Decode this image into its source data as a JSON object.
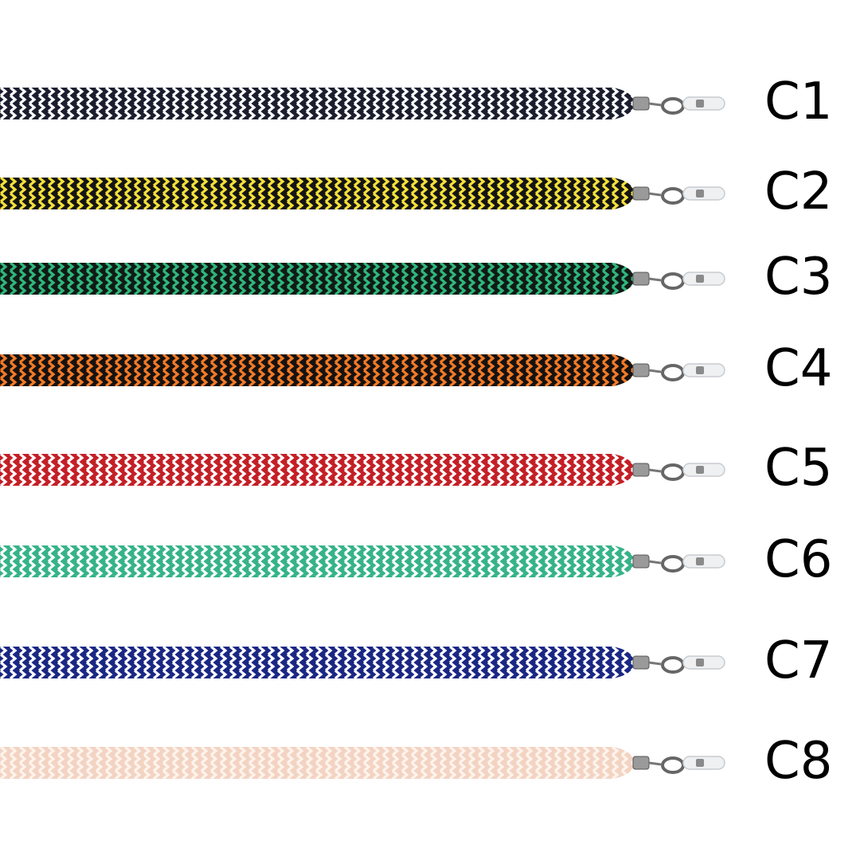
{
  "variants": [
    {
      "label": "C1",
      "base": "#1b1e2e",
      "stripe": "#ffffff"
    },
    {
      "label": "C2",
      "base": "#141414",
      "stripe": "#f3e03a"
    },
    {
      "label": "C3",
      "base": "#111a15",
      "stripe": "#2fb67c"
    },
    {
      "label": "C4",
      "base": "#161210",
      "stripe": "#f27a26"
    },
    {
      "label": "C5",
      "base": "#c41f26",
      "stripe": "#ffffff"
    },
    {
      "label": "C6",
      "base": "#36b389",
      "stripe": "#ffffff"
    },
    {
      "label": "C7",
      "base": "#1a2784",
      "stripe": "#ffffff"
    },
    {
      "label": "C8",
      "base": "#f3d3c2",
      "stripe": "#fdf3ec"
    }
  ]
}
